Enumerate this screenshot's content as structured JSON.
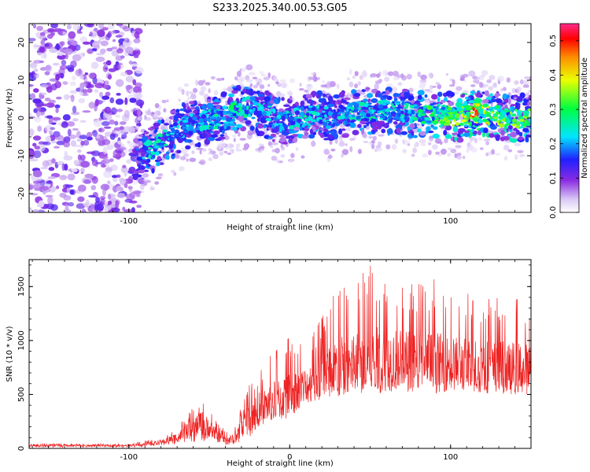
{
  "title": "S233.2025.340.00.53.G05",
  "chart_data": [
    {
      "type": "heatmap",
      "xlabel": "Height of straight line (km)",
      "ylabel": "Frequency (Hz)",
      "xlim": [
        -162,
        150
      ],
      "ylim": [
        -25,
        25
      ],
      "xticks": [
        -100,
        0,
        100
      ],
      "yticks": [
        -20,
        -10,
        0,
        10,
        20
      ],
      "ridge": {
        "x": [
          -95,
          -85,
          -75,
          -65,
          -55,
          -45,
          -35,
          -25,
          -15,
          -5,
          5,
          15,
          25,
          35,
          45,
          55,
          65,
          75,
          85,
          95,
          105,
          115,
          125,
          135,
          145
        ],
        "center_hz": [
          -10,
          -8,
          -5,
          -2,
          -1,
          0,
          2,
          3,
          1,
          -1,
          0,
          1,
          0,
          1,
          2,
          2,
          2,
          1,
          1,
          1,
          0,
          1,
          1,
          0,
          0
        ],
        "peak_amplitude": [
          0.22,
          0.3,
          0.28,
          0.25,
          0.28,
          0.3,
          0.32,
          0.28,
          0.26,
          0.25,
          0.3,
          0.3,
          0.26,
          0.27,
          0.3,
          0.3,
          0.28,
          0.3,
          0.33,
          0.38,
          0.4,
          0.55,
          0.42,
          0.4,
          0.38
        ]
      },
      "colorbar": {
        "label": "Normalized spectral amplitude",
        "range": [
          0,
          0.55
        ],
        "ticks": [
          "0.0",
          "0.1",
          "0.2",
          "0.3",
          "0.4",
          "0.5"
        ]
      }
    },
    {
      "type": "line",
      "xlabel": "Height of straight line (km)",
      "ylabel": "SNR (10 * v/v)",
      "xlim": [
        -162,
        150
      ],
      "ylim": [
        0,
        1750
      ],
      "xticks": [
        -100,
        0,
        100
      ],
      "yticks": [
        0,
        500,
        1000,
        1500
      ],
      "color": "#ee2222",
      "envelope": {
        "x": [
          -162,
          -130,
          -100,
          -90,
          -80,
          -70,
          -60,
          -55,
          -50,
          -45,
          -40,
          -35,
          -30,
          -25,
          -20,
          -10,
          0,
          10,
          20,
          30,
          40,
          50,
          60,
          70,
          80,
          90,
          100,
          110,
          120,
          130,
          140,
          150
        ],
        "low": [
          10,
          10,
          10,
          15,
          25,
          40,
          60,
          60,
          70,
          50,
          30,
          30,
          50,
          90,
          140,
          220,
          280,
          380,
          430,
          470,
          500,
          520,
          530,
          540,
          540,
          530,
          530,
          520,
          510,
          510,
          500,
          500
        ],
        "high": [
          45,
          45,
          40,
          70,
          100,
          200,
          380,
          480,
          380,
          250,
          170,
          200,
          400,
          620,
          700,
          900,
          1050,
          950,
          1250,
          1500,
          1580,
          1700,
          1600,
          1600,
          1580,
          1580,
          1450,
          1450,
          1450,
          1400,
          1400,
          1350
        ],
        "mean": [
          25,
          25,
          25,
          35,
          55,
          100,
          180,
          230,
          180,
          110,
          70,
          80,
          160,
          280,
          340,
          420,
          480,
          580,
          650,
          720,
          760,
          780,
          790,
          790,
          780,
          770,
          760,
          750,
          740,
          730,
          720,
          710
        ]
      }
    }
  ]
}
